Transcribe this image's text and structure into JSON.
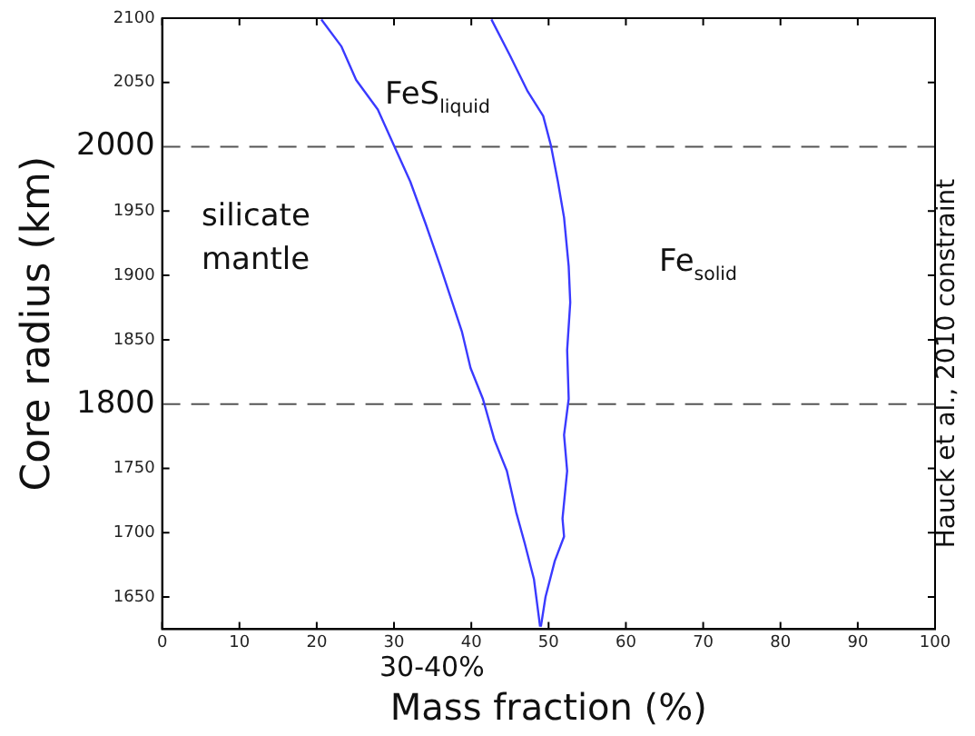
{
  "chart_data": {
    "type": "line",
    "xlabel": "Mass fraction (%)",
    "ylabel": "Core radius (km)",
    "series": [
      {
        "color": "#3a3aff",
        "x": [
          20.6,
          23.2,
          25.1,
          27.9,
          30.0,
          32.1,
          34.1,
          36.0,
          38.8,
          39.9,
          41.5,
          43.0,
          44.6,
          45.8,
          46.9,
          48.1,
          48.9
        ],
        "values": [
          2099,
          2078,
          2052,
          2029,
          2001,
          1973,
          1940,
          1907,
          1856,
          1828,
          1804,
          1772,
          1748,
          1716,
          1692,
          1664,
          1627
        ]
      },
      {
        "color": "#3a3aff",
        "x": [
          42.6,
          45.0,
          47.3,
          49.3,
          50.3,
          51.2,
          52.0,
          52.6,
          52.8,
          52.4,
          52.6,
          52.0,
          52.4,
          51.8,
          52.0,
          50.8,
          49.6,
          49.0
        ],
        "values": [
          2099,
          2071,
          2043,
          2024,
          2001,
          1973,
          1945,
          1907,
          1879,
          1842,
          1804,
          1776,
          1748,
          1711,
          1697,
          1678,
          1650,
          1627
        ]
      }
    ],
    "xlim": [
      0,
      100
    ],
    "xticks": [
      0,
      10,
      20,
      30,
      40,
      50,
      60,
      70,
      80,
      90,
      100
    ],
    "ylim": [
      1625,
      2100
    ],
    "yticks": [
      1650,
      1700,
      1750,
      1850,
      1900,
      1950,
      2050,
      2100
    ],
    "ref_lines": [
      {
        "axis": "y",
        "value": 2000,
        "label": "2000",
        "color": "#555555",
        "line_style": "dashed"
      },
      {
        "axis": "y",
        "value": 1800,
        "label": "1800",
        "color": "#555555",
        "line_style": "dashed"
      }
    ],
    "annotations": [
      "FeS$_{liquid}$",
      "silicate mantle",
      "Fe$_{solid}$",
      "30-40%",
      "Hauck et al., 2010 constraint"
    ],
    "grid": false,
    "legend": false,
    "marker": "none",
    "line_style": "solid"
  }
}
